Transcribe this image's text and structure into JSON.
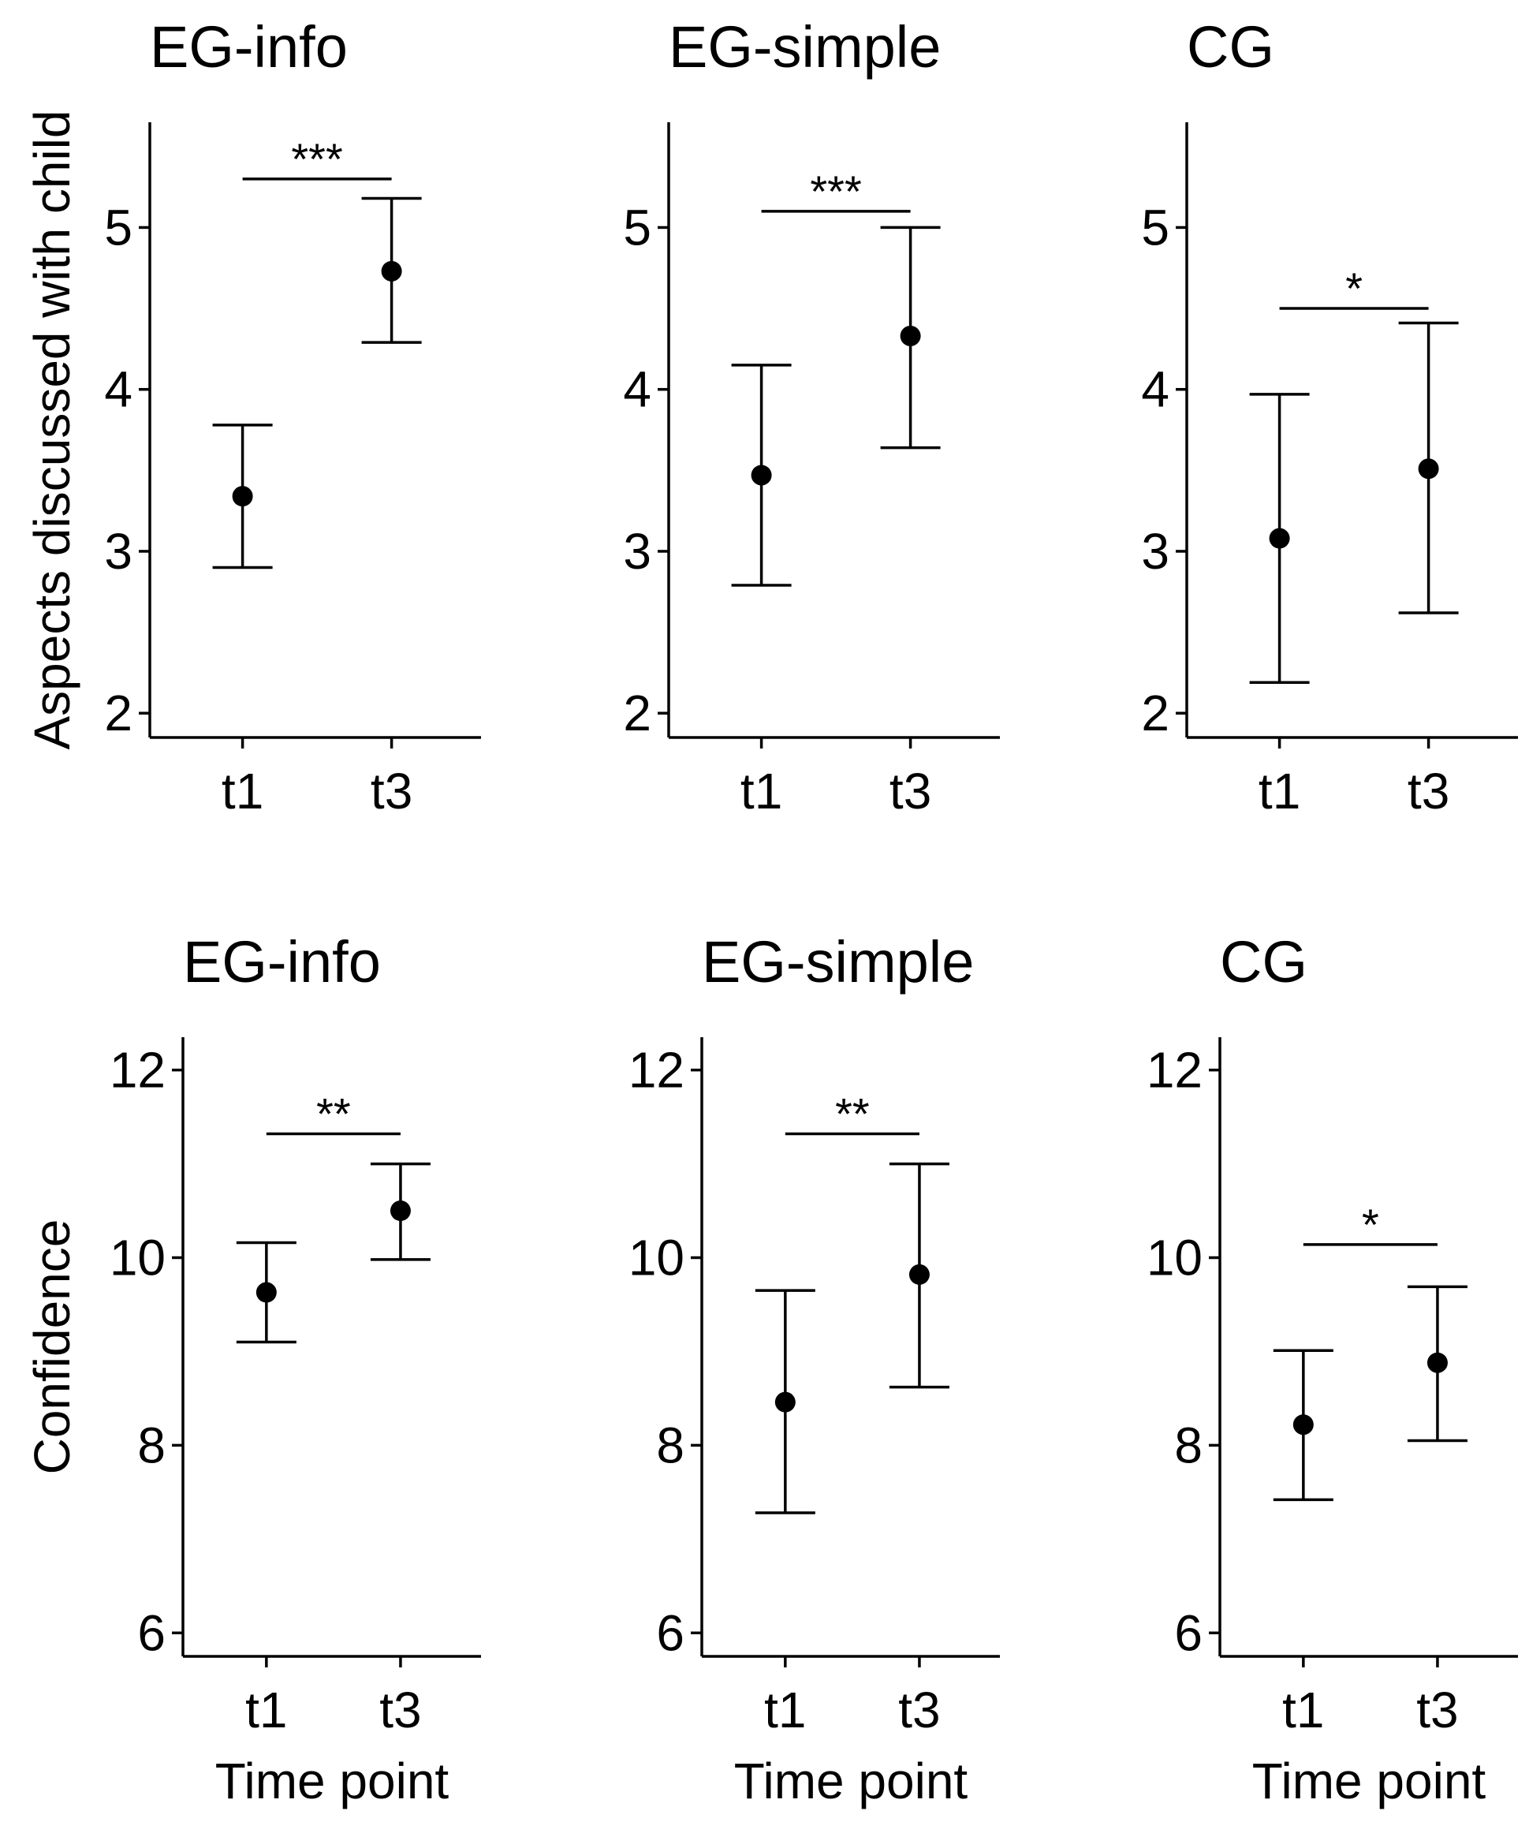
{
  "chart_data": [
    {
      "type": "scatter",
      "title": "EG-info",
      "ylabel": "Aspects discussed with child",
      "xlabel": "",
      "categories": [
        "t1",
        "t3"
      ],
      "series": [
        {
          "values": [
            3.34,
            4.73
          ],
          "lower": [
            2.9,
            4.29
          ],
          "upper": [
            3.78,
            5.18
          ]
        }
      ],
      "ylim": [
        1.85,
        5.65
      ],
      "yticks": [
        2,
        3,
        4,
        5
      ],
      "significance": {
        "label": "***",
        "y": 5.3
      }
    },
    {
      "type": "scatter",
      "title": "EG-simple",
      "ylabel": "",
      "xlabel": "",
      "categories": [
        "t1",
        "t3"
      ],
      "series": [
        {
          "values": [
            3.47,
            4.33
          ],
          "lower": [
            2.79,
            3.64
          ],
          "upper": [
            4.15,
            5.0
          ]
        }
      ],
      "ylim": [
        1.85,
        5.65
      ],
      "yticks": [
        2,
        3,
        4,
        5
      ],
      "significance": {
        "label": "***",
        "y": 5.1
      }
    },
    {
      "type": "scatter",
      "title": "CG",
      "ylabel": "",
      "xlabel": "",
      "categories": [
        "t1",
        "t3"
      ],
      "series": [
        {
          "values": [
            3.08,
            3.51
          ],
          "lower": [
            2.19,
            2.62
          ],
          "upper": [
            3.97,
            4.41
          ]
        }
      ],
      "ylim": [
        1.85,
        5.65
      ],
      "yticks": [
        2,
        3,
        4,
        5
      ],
      "significance": {
        "label": "*",
        "y": 4.5
      }
    },
    {
      "type": "scatter",
      "title": "EG-info",
      "ylabel": "Confidence",
      "xlabel": "Time point",
      "categories": [
        "t1",
        "t3"
      ],
      "series": [
        {
          "values": [
            9.63,
            10.5
          ],
          "lower": [
            9.1,
            9.98
          ],
          "upper": [
            10.16,
            11.0
          ]
        }
      ],
      "ylim": [
        5.75,
        12.35
      ],
      "yticks": [
        6,
        8,
        10,
        12
      ],
      "significance": {
        "label": "**",
        "y": 11.32
      }
    },
    {
      "type": "scatter",
      "title": "EG-simple",
      "ylabel": "",
      "xlabel": "Time point",
      "categories": [
        "t1",
        "t3"
      ],
      "series": [
        {
          "values": [
            8.46,
            9.82
          ],
          "lower": [
            7.28,
            8.62
          ],
          "upper": [
            9.65,
            11.0
          ]
        }
      ],
      "ylim": [
        5.75,
        12.35
      ],
      "yticks": [
        6,
        8,
        10,
        12
      ],
      "significance": {
        "label": "**",
        "y": 11.32
      }
    },
    {
      "type": "scatter",
      "title": "CG",
      "ylabel": "",
      "xlabel": "Time point",
      "categories": [
        "t1",
        "t3"
      ],
      "series": [
        {
          "values": [
            8.22,
            8.88
          ],
          "lower": [
            7.42,
            8.05
          ],
          "upper": [
            9.01,
            9.69
          ]
        }
      ],
      "ylim": [
        5.75,
        12.35
      ],
      "yticks": [
        6,
        8,
        10,
        12
      ],
      "significance": {
        "label": "*",
        "y": 10.14
      }
    }
  ]
}
